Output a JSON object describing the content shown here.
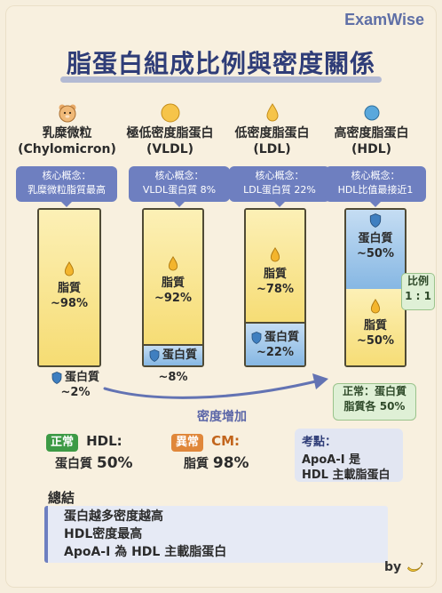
{
  "brand": "ExamWise",
  "title": "脂蛋白組成比例與密度關係",
  "columns": [
    {
      "name": "乳糜微粒",
      "sub": "(Chylomicron)",
      "concept_l1": "核心概念：",
      "concept_l2": "乳糜微粒脂質最高",
      "fat_label": "脂質",
      "fat_value": "~98%",
      "protein_label": "蛋白質",
      "protein_value": "~2%",
      "fat_fraction": 0.98
    },
    {
      "name": "極低密度脂蛋白",
      "sub": "(VLDL)",
      "concept_l1": "核心概念：",
      "concept_l2": "VLDL蛋白質 8%",
      "fat_label": "脂質",
      "fat_value": "~92%",
      "protein_label": "蛋白質",
      "protein_value": "~8%",
      "fat_fraction": 0.92
    },
    {
      "name": "低密度脂蛋白",
      "sub": "(LDL)",
      "concept_l1": "核心概念：",
      "concept_l2": "LDL蛋白質 22%",
      "fat_label": "脂質",
      "fat_value": "~78%",
      "protein_label": "蛋白質",
      "protein_value": "~22%",
      "fat_fraction": 0.78
    },
    {
      "name": "高密度脂蛋白",
      "sub": "(HDL)",
      "concept_l1": "核心概念：",
      "concept_l2": "HDL比值最接近1",
      "fat_label": "脂質",
      "fat_value": "~50%",
      "protein_label": "蛋白質",
      "protein_value": "~50%",
      "fat_fraction": 0.5
    }
  ],
  "ratio": {
    "l1": "比例",
    "l2": "1 : 1"
  },
  "normal_note": {
    "l1": "正常：蛋白質",
    "l2": "脂質各 50%"
  },
  "arrow_label": "密度增加",
  "cards": {
    "normal": {
      "badge": "正常",
      "title": "HDL:",
      "value_label": "蛋白質",
      "value": "50%"
    },
    "abnormal": {
      "badge": "異常",
      "title": "CM:",
      "value_label": "脂質",
      "value": "98%"
    },
    "exam": {
      "title": "考點：",
      "l1": "ApoA-I 是",
      "l2": "HDL 主載脂蛋白"
    }
  },
  "summary": {
    "title": "總結",
    "lines": [
      "蛋白越多密度越高",
      "HDL密度最高",
      "ApoA-I 為 HDL 主載脂蛋白"
    ]
  },
  "credit": "by",
  "colors": {
    "accent": "#6e7fc0",
    "fat": "#f6dc73",
    "protein": "#86b7e3",
    "normal": "#3d9a45",
    "abnormal": "#e0873a"
  }
}
